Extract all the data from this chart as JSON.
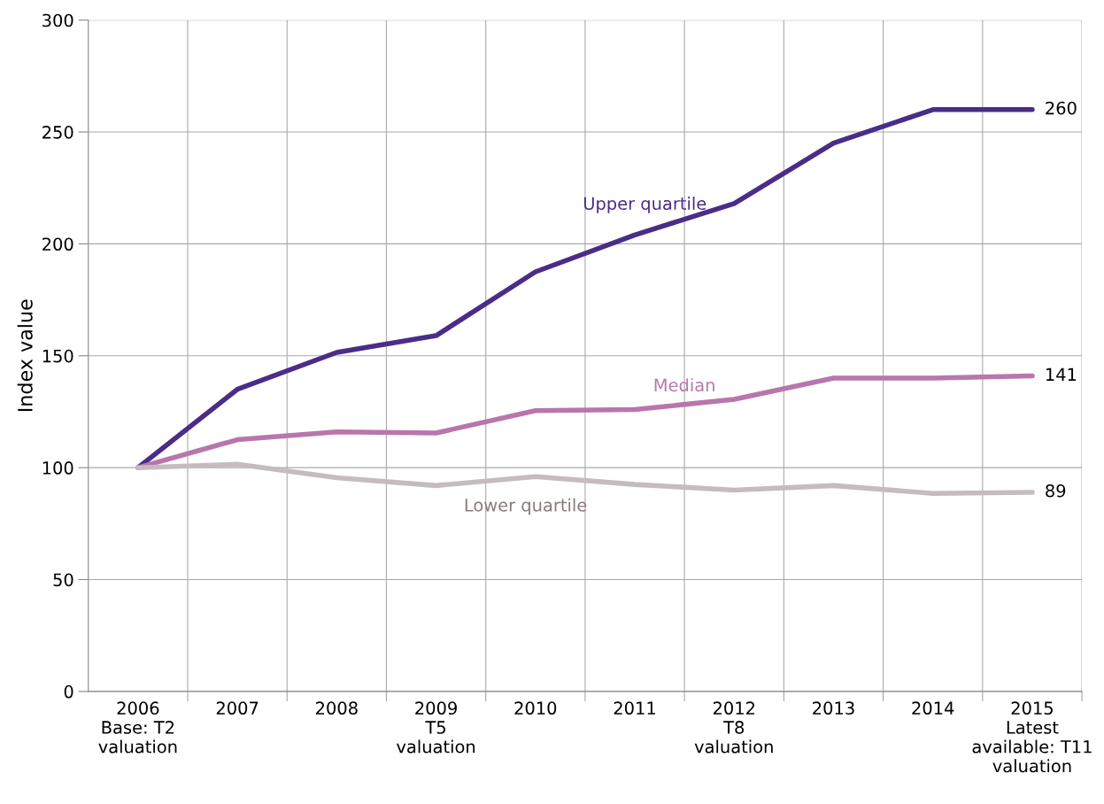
{
  "chart_data": {
    "type": "line",
    "ylabel": "Index value",
    "categories": [
      "2006\nBase: T2\nvaluation",
      "2007",
      "2008",
      "2009\nT5\nvaluation",
      "2010",
      "2011",
      "2012\nT8\nvaluation",
      "2013",
      "2014",
      "2015\nLatest\navailable: T11\nvaluation"
    ],
    "series": [
      {
        "name": "Upper quartile",
        "color": "#4b2c88",
        "values": [
          100,
          135,
          151.5,
          159,
          187.5,
          204,
          218,
          245,
          260,
          260
        ],
        "value_labels": [
          null,
          null,
          null,
          null,
          null,
          null,
          null,
          null,
          null,
          "260"
        ]
      },
      {
        "name": "Median",
        "color": "#b876ad",
        "values": [
          100,
          112.5,
          116,
          115.5,
          125.5,
          126,
          130.5,
          140,
          140,
          141
        ],
        "value_labels": [
          null,
          null,
          null,
          null,
          null,
          null,
          null,
          null,
          null,
          "141"
        ]
      },
      {
        "name": "Lower quartile",
        "color": "#c4bcc0",
        "values": [
          100,
          101.5,
          95.5,
          92,
          96,
          92.5,
          90,
          92,
          88.5,
          89
        ],
        "value_labels": [
          null,
          null,
          null,
          null,
          null,
          null,
          null,
          null,
          null,
          "89"
        ]
      }
    ],
    "ylim": [
      0,
      300
    ],
    "yticks": [
      0,
      50,
      100,
      150,
      200,
      250,
      300
    ],
    "grid": true,
    "line_style": "solid",
    "marker": "none"
  }
}
